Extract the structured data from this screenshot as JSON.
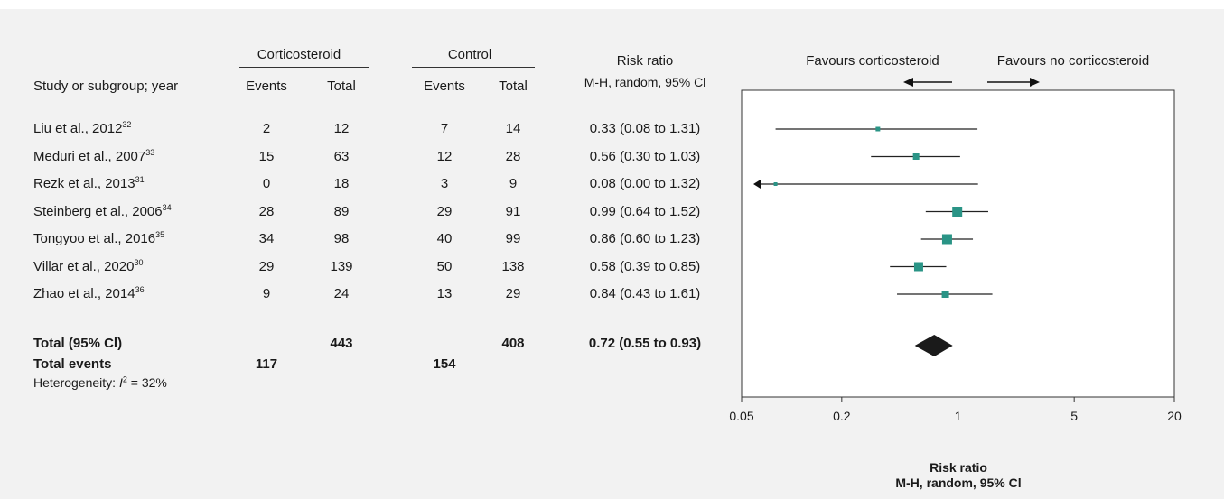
{
  "headers": {
    "study": "Study or subgroup; year",
    "group1": "Corticosteroid",
    "group2": "Control",
    "events": "Events",
    "total": "Total",
    "rr_title": "Risk ratio",
    "rr_method": "M-H, random, 95% Cl",
    "favours_left": "Favours corticosteroid",
    "favours_right": "Favours no corticosteroid"
  },
  "studies": [
    {
      "name": "Liu et al., 2012",
      "ref": "32",
      "e1": "2",
      "t1": "12",
      "e2": "7",
      "t2": "14",
      "rr_text": "0.33 (0.08 to 1.31)"
    },
    {
      "name": "Meduri et al., 2007",
      "ref": "33",
      "e1": "15",
      "t1": "63",
      "e2": "12",
      "t2": "28",
      "rr_text": "0.56 (0.30 to 1.03)"
    },
    {
      "name": "Rezk et al., 2013",
      "ref": "31",
      "e1": "0",
      "t1": "18",
      "e2": "3",
      "t2": "9",
      "rr_text": "0.08 (0.00 to 1.32)"
    },
    {
      "name": "Steinberg et al., 2006",
      "ref": "34",
      "e1": "28",
      "t1": "89",
      "e2": "29",
      "t2": "91",
      "rr_text": "0.99 (0.64 to 1.52)"
    },
    {
      "name": "Tongyoo et al., 2016",
      "ref": "35",
      "e1": "34",
      "t1": "98",
      "e2": "40",
      "t2": "99",
      "rr_text": "0.86 (0.60 to 1.23)"
    },
    {
      "name": "Villar et al., 2020",
      "ref": "30",
      "e1": "29",
      "t1": "139",
      "e2": "50",
      "t2": "138",
      "rr_text": "0.58 (0.39 to 0.85)"
    },
    {
      "name": "Zhao et al., 2014",
      "ref": "36",
      "e1": "9",
      "t1": "24",
      "e2": "13",
      "t2": "29",
      "rr_text": "0.84 (0.43 to 1.61)"
    }
  ],
  "total": {
    "label": "Total (95% Cl)",
    "t1": "443",
    "t2": "408",
    "rr_text": "0.72 (0.55 to 0.93)"
  },
  "total_events": {
    "label": "Total events",
    "e1": "117",
    "e2": "154"
  },
  "heterogeneity": {
    "prefix": "Heterogeneity: ",
    "symbol": "I",
    "sup": "2",
    "rest": " = 32%"
  },
  "colors": {
    "marker": "#2a9486",
    "diamond": "#1a1a1a",
    "background": "#f2f2f2",
    "plot_bg": "#ffffff"
  },
  "chart_data": {
    "type": "forest",
    "scale": "log",
    "xlim": [
      0.05,
      20
    ],
    "ticks": [
      "0.05",
      "0.2",
      "1",
      "5",
      "20"
    ],
    "tick_values": [
      0.05,
      0.2,
      1,
      5,
      20
    ],
    "xlabel": "Risk ratio",
    "xlabel2": "M-H, random, 95% Cl",
    "points": [
      {
        "label": "Liu et al., 2012",
        "rr": 0.33,
        "lo": 0.08,
        "hi": 1.31,
        "arrow_left": false
      },
      {
        "label": "Meduri et al., 2007",
        "rr": 0.56,
        "lo": 0.3,
        "hi": 1.03,
        "arrow_left": false
      },
      {
        "label": "Rezk et al., 2013",
        "rr": 0.08,
        "lo": 0.0,
        "hi": 1.32,
        "arrow_left": true
      },
      {
        "label": "Steinberg et al., 2006",
        "rr": 0.99,
        "lo": 0.64,
        "hi": 1.52,
        "arrow_left": false
      },
      {
        "label": "Tongyoo et al., 2016",
        "rr": 0.86,
        "lo": 0.6,
        "hi": 1.23,
        "arrow_left": false
      },
      {
        "label": "Villar et al., 2020",
        "rr": 0.58,
        "lo": 0.39,
        "hi": 0.85,
        "arrow_left": false
      },
      {
        "label": "Zhao et al., 2014",
        "rr": 0.84,
        "lo": 0.43,
        "hi": 1.61,
        "arrow_left": false
      }
    ],
    "pooled": {
      "rr": 0.72,
      "lo": 0.55,
      "hi": 0.93
    }
  }
}
